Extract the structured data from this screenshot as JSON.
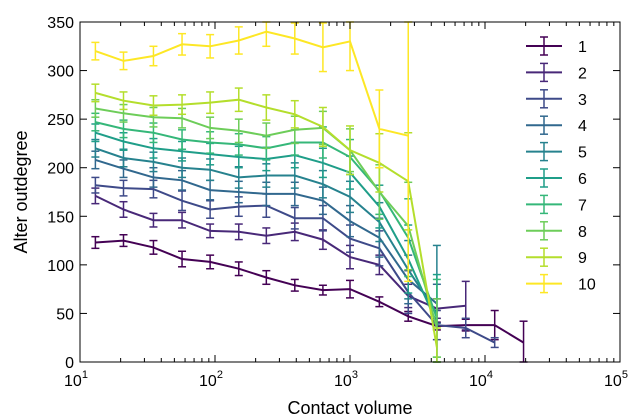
{
  "chart_data": {
    "type": "line",
    "xlabel": "Contact volume",
    "ylabel": "Alter outdegree",
    "xscale": "log",
    "xlim": [
      10,
      100000
    ],
    "ylim": [
      0,
      350
    ],
    "x_ticks": [
      10,
      100,
      1000,
      10000,
      100000
    ],
    "x_tick_labels": [
      {
        "base": "10",
        "exp": "1"
      },
      {
        "base": "10",
        "exp": "2"
      },
      {
        "base": "10",
        "exp": "3"
      },
      {
        "base": "10",
        "exp": "4"
      },
      {
        "base": "10",
        "exp": "5"
      }
    ],
    "y_ticks": [
      0,
      50,
      100,
      150,
      200,
      250,
      300,
      350
    ],
    "y_tick_labels": [
      "0",
      "50",
      "100",
      "150",
      "200",
      "250",
      "300",
      "350"
    ],
    "grid": false,
    "legend_position": "top-right",
    "series": [
      {
        "name": "1",
        "color": "#440154",
        "x": [
          13,
          21,
          35,
          57,
          92,
          150,
          240,
          390,
          630,
          1000,
          1650,
          2700,
          4400,
          7200,
          11800,
          19300
        ],
        "y": [
          123,
          125,
          118,
          106,
          103,
          96,
          87,
          79,
          74,
          75,
          62,
          47,
          37,
          38,
          38,
          20
        ],
        "err": [
          6,
          6,
          7,
          8,
          7,
          7,
          7,
          6,
          5,
          9,
          5,
          5,
          4,
          6,
          15,
          22
        ]
      },
      {
        "name": "2",
        "color": "#482878",
        "x": [
          13,
          21,
          35,
          57,
          92,
          150,
          240,
          390,
          630,
          1000,
          1650,
          2700,
          4400,
          7200
        ],
        "y": [
          171,
          157,
          146,
          146,
          135,
          134,
          130,
          134,
          126,
          108,
          100,
          68,
          55,
          58
        ],
        "err": [
          8,
          8,
          7,
          8,
          7,
          8,
          8,
          9,
          10,
          12,
          10,
          12,
          10,
          25
        ]
      },
      {
        "name": "3",
        "color": "#3E4A89",
        "x": [
          13,
          21,
          35,
          57,
          92,
          150,
          240,
          390,
          630,
          1000,
          1650,
          2700,
          4400,
          7200,
          11800
        ],
        "y": [
          182,
          179,
          178,
          166,
          157,
          160,
          161,
          148,
          148,
          127,
          117,
          72,
          38,
          35,
          20
        ],
        "err": [
          8,
          8,
          9,
          10,
          9,
          10,
          12,
          11,
          13,
          14,
          18,
          22,
          15,
          10,
          5
        ]
      },
      {
        "name": "4",
        "color": "#31688E",
        "x": [
          13,
          21,
          35,
          57,
          92,
          150,
          240,
          390,
          630,
          1000,
          1650,
          2700,
          4400
        ],
        "y": [
          208,
          199,
          190,
          187,
          177,
          175,
          173,
          173,
          166,
          145,
          128,
          85,
          60
        ],
        "err": [
          9,
          9,
          10,
          10,
          10,
          11,
          12,
          12,
          14,
          16,
          20,
          25,
          20
        ]
      },
      {
        "name": "5",
        "color": "#26828E",
        "x": [
          13,
          21,
          35,
          57,
          92,
          150,
          240,
          390,
          630,
          1000,
          1650,
          2700,
          4400
        ],
        "y": [
          220,
          210,
          206,
          200,
          198,
          190,
          192,
          192,
          183,
          170,
          144,
          95,
          50
        ],
        "err": [
          9,
          9,
          10,
          10,
          11,
          11,
          12,
          13,
          14,
          16,
          20,
          30,
          70
        ]
      },
      {
        "name": "6",
        "color": "#1F9E89",
        "x": [
          13,
          21,
          35,
          57,
          92,
          150,
          240,
          390,
          630,
          1000,
          1650,
          2700,
          4400
        ],
        "y": [
          236,
          227,
          220,
          217,
          214,
          211,
          209,
          213,
          205,
          195,
          160,
          106,
          40
        ],
        "err": [
          9,
          9,
          10,
          10,
          11,
          11,
          12,
          13,
          15,
          17,
          22,
          35,
          50
        ]
      },
      {
        "name": "7",
        "color": "#35B779",
        "x": [
          13,
          21,
          35,
          57,
          92,
          150,
          240,
          390,
          630,
          1000,
          1650,
          2700,
          4400
        ],
        "y": [
          247,
          240,
          236,
          229,
          226,
          224,
          220,
          226,
          226,
          211,
          176,
          128,
          45
        ],
        "err": [
          9,
          9,
          10,
          10,
          11,
          11,
          12,
          13,
          16,
          18,
          24,
          40,
          40
        ]
      },
      {
        "name": "8",
        "color": "#6DCD59",
        "x": [
          13,
          21,
          35,
          57,
          92,
          150,
          240,
          390,
          630,
          1000,
          1650,
          2700,
          4400
        ],
        "y": [
          261,
          256,
          252,
          251,
          241,
          238,
          233,
          239,
          241,
          218,
          175,
          140,
          35
        ],
        "err": [
          9,
          9,
          10,
          10,
          11,
          12,
          13,
          14,
          17,
          22,
          28,
          45,
          30
        ]
      },
      {
        "name": "9",
        "color": "#B4DE2C",
        "x": [
          13,
          21,
          35,
          57,
          92,
          150,
          240,
          390,
          630,
          1000,
          1650,
          2700,
          4400
        ],
        "y": [
          277,
          269,
          264,
          265,
          267,
          270,
          262,
          255,
          242,
          218,
          205,
          186,
          15
        ],
        "err": [
          9,
          9,
          10,
          10,
          11,
          12,
          13,
          14,
          20,
          25,
          30,
          50,
          20
        ]
      },
      {
        "name": "10",
        "color": "#FDE725",
        "x": [
          13,
          21,
          35,
          57,
          92,
          150,
          240,
          390,
          630,
          1000,
          1650,
          2700
        ],
        "y": [
          320,
          310,
          315,
          327,
          325,
          331,
          340,
          333,
          324,
          330,
          240,
          233
        ],
        "err": [
          9,
          9,
          10,
          11,
          12,
          14,
          15,
          16,
          25,
          30,
          40,
          150
        ]
      }
    ]
  }
}
